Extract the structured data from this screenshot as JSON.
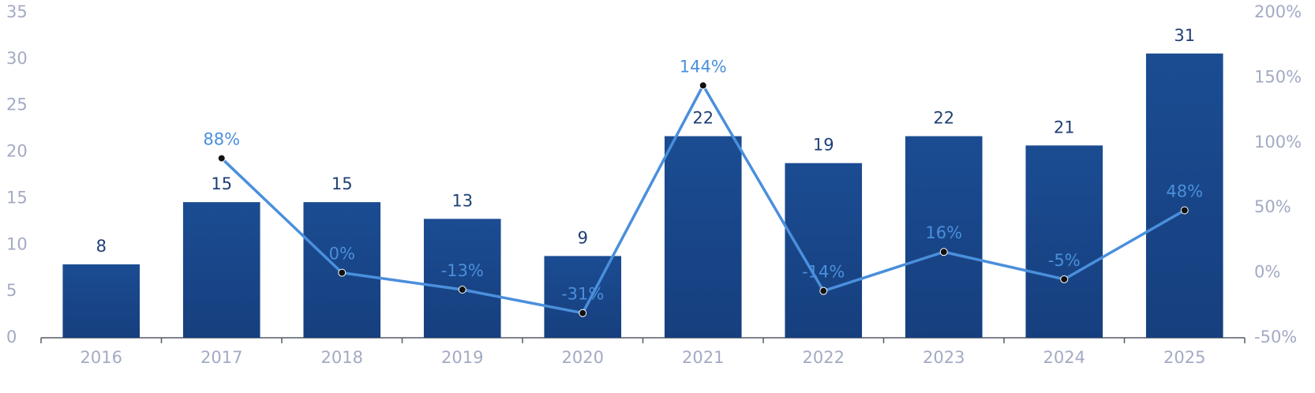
{
  "chart_data": {
    "type": "combo",
    "categories": [
      "2016",
      "2017",
      "2018",
      "2019",
      "2020",
      "2021",
      "2022",
      "2023",
      "2024",
      "2025"
    ],
    "ylim": [
      0,
      35
    ],
    "yticks": [
      0,
      5,
      10,
      15,
      20,
      25,
      30,
      35
    ],
    "y2lim": [
      -50,
      200
    ],
    "y2ticks": [
      {
        "value": -50,
        "label": "-50%"
      },
      {
        "value": 0,
        "label": "0%"
      },
      {
        "value": 50,
        "label": "50%"
      },
      {
        "value": 100,
        "label": "100%"
      },
      {
        "value": 150,
        "label": "150%"
      },
      {
        "value": 200,
        "label": "200%"
      }
    ],
    "series": [
      {
        "type": "bar",
        "color": "#174a8d",
        "values": [
          7.9,
          14.6,
          14.6,
          12.8,
          8.8,
          21.7,
          18.8,
          21.7,
          20.7,
          30.6
        ],
        "value_labels": [
          "8",
          "15",
          "15",
          "13",
          "9",
          "22",
          "19",
          "22",
          "21",
          "31"
        ]
      },
      {
        "type": "line",
        "axis": "y2",
        "color": "#4a8fdc",
        "values": [
          null,
          88,
          0,
          -13,
          -31,
          144,
          -14,
          16,
          -5,
          48
        ],
        "value_labels": [
          null,
          "88%",
          "0%",
          "-13%",
          "-31%",
          "144%",
          "-14%",
          "16%",
          "-5%",
          "48%"
        ]
      }
    ]
  }
}
